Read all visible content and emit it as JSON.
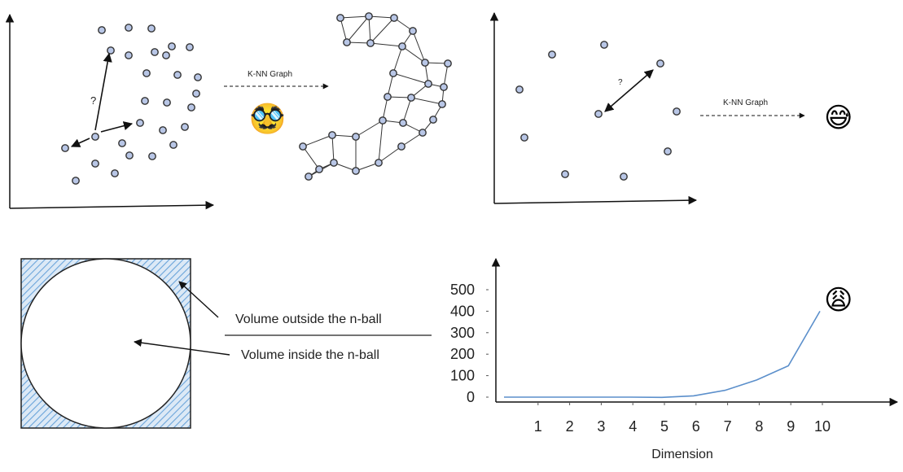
{
  "panel_topleft": {
    "question_mark": "?",
    "arrow_label": "K-NN Graph",
    "emoji": "🥸"
  },
  "panel_topright": {
    "question_mark": "?",
    "arrow_label": "K-NN Graph",
    "emoji": "😅"
  },
  "panel_bottomleft": {
    "outside_label": "Volume outside the n-ball",
    "inside_label": "Volume inside the n-ball",
    "hatch_color": "#6aa4da"
  },
  "chart_data": {
    "type": "line",
    "x": [
      0,
      1,
      2,
      3,
      4,
      5,
      6,
      7,
      8,
      9,
      10
    ],
    "series": [
      {
        "values": [
          0,
          0,
          0,
          0,
          0,
          -1,
          6,
          32,
          80,
          146,
          400
        ]
      }
    ],
    "x_ticks": [
      "1",
      "2",
      "3",
      "4",
      "5",
      "6",
      "7",
      "8",
      "9",
      "10"
    ],
    "y_ticks": [
      "0",
      "100",
      "200",
      "300",
      "400",
      "500"
    ],
    "title": "",
    "xlabel": "Dimension",
    "ylabel": "",
    "xlim": [
      0,
      10
    ],
    "ylim": [
      0,
      500
    ],
    "line_color": "#5b8fcb",
    "emoji": "😩"
  }
}
